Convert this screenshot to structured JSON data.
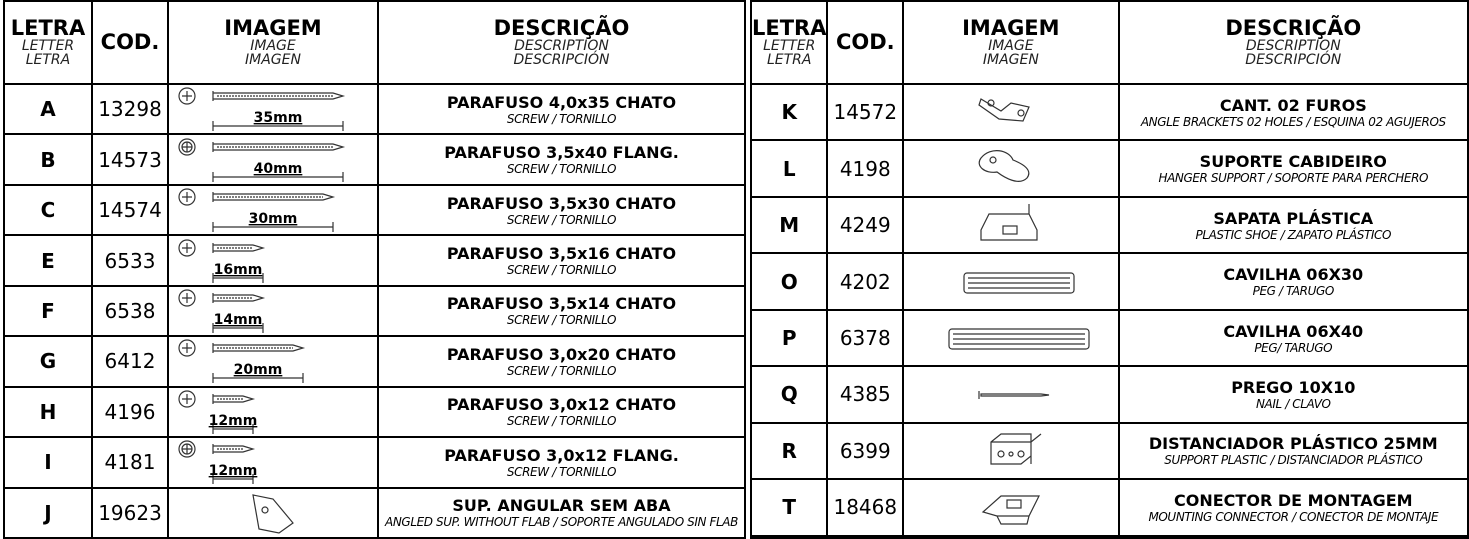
{
  "header": {
    "letra": {
      "pt": "LETRA",
      "en": "LETTER",
      "es": "LETRA"
    },
    "cod": "COD.",
    "imagem": {
      "pt": "IMAGEM",
      "en": "IMAGE",
      "es": "IMAGEN"
    },
    "descricao": {
      "pt": "DESCRIÇÃO",
      "en": "DESCRIPTION",
      "es": "DESCRIPCIÓN"
    }
  },
  "left": {
    "rows": [
      {
        "letra": "A",
        "cod": "13298",
        "size": "35mm",
        "name": "PARAFUSO 4,0x35 CHATO",
        "sub": "SCREW / TORNILLO"
      },
      {
        "letra": "B",
        "cod": "14573",
        "size": "40mm",
        "name": "PARAFUSO 3,5x40 FLANG.",
        "sub": "SCREW / TORNILLO"
      },
      {
        "letra": "C",
        "cod": "14574",
        "size": "30mm",
        "name": "PARAFUSO 3,5x30 CHATO",
        "sub": "SCREW / TORNILLO"
      },
      {
        "letra": "E",
        "cod": "6533",
        "size": "16mm",
        "name": "PARAFUSO 3,5x16 CHATO",
        "sub": "SCREW / TORNILLO"
      },
      {
        "letra": "F",
        "cod": "6538",
        "size": "14mm",
        "name": "PARAFUSO 3,5x14 CHATO",
        "sub": "SCREW / TORNILLO"
      },
      {
        "letra": "G",
        "cod": "6412",
        "size": "20mm",
        "name": "PARAFUSO 3,0x20 CHATO",
        "sub": "SCREW / TORNILLO"
      },
      {
        "letra": "H",
        "cod": "4196",
        "size": "12mm",
        "name": "PARAFUSO 3,0x12 CHATO",
        "sub": "SCREW / TORNILLO"
      },
      {
        "letra": "I",
        "cod": "4181",
        "size": "12mm",
        "name": "PARAFUSO 3,0x12 FLANG.",
        "sub": "SCREW / TORNILLO"
      },
      {
        "letra": "J",
        "cod": "19623",
        "name": "SUP. ANGULAR SEM ABA",
        "sub": "ANGLED SUP. WITHOUT FLAB / SOPORTE ANGULADO SIN FLAB"
      }
    ]
  },
  "right": {
    "rows": [
      {
        "letra": "K",
        "cod": "14572",
        "name": "CANT. 02 FUROS",
        "sub": "ANGLE BRACKETS 02 HOLES / ESQUINA 02 AGUJEROS"
      },
      {
        "letra": "L",
        "cod": "4198",
        "name": "SUPORTE CABIDEIRO",
        "sub": "HANGER SUPPORT / SOPORTE PARA PERCHERO"
      },
      {
        "letra": "M",
        "cod": "4249",
        "name": "SAPATA PLÁSTICA",
        "sub": "PLASTIC SHOE / ZAPATO PLÁSTICO"
      },
      {
        "letra": "O",
        "cod": "4202",
        "name": "CAVILHA 06X30",
        "sub": "PEG / TARUGO"
      },
      {
        "letra": "P",
        "cod": "6378",
        "name": "CAVILHA 06X40",
        "sub": "PEG/ TARUGO"
      },
      {
        "letra": "Q",
        "cod": "4385",
        "name": "PREGO 10X10",
        "sub": "NAIL / CLAVO"
      },
      {
        "letra": "R",
        "cod": "6399",
        "name": "DISTANCIADOR PLÁSTICO 25MM",
        "sub": "SUPPORT PLASTIC / DISTANCIADOR PLÁSTICO"
      },
      {
        "letra": "T",
        "cod": "18468",
        "name": "CONECTOR DE MONTAGEM",
        "sub": "MOUNTING CONNECTOR / CONECTOR DE MONTAJE"
      }
    ]
  }
}
